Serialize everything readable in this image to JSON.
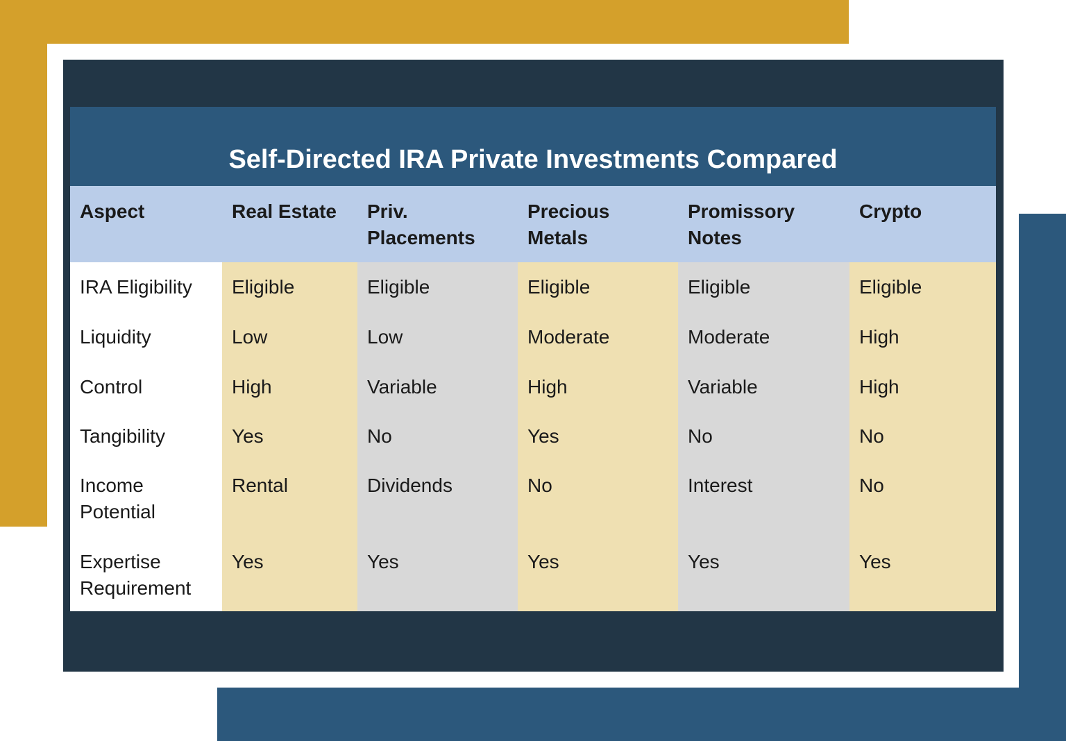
{
  "title": "Self-Directed IRA Private Investments Compared",
  "colors": {
    "gold": "#d4a02b",
    "navy": "#223646",
    "blue": "#2c587c",
    "header_bg": "#bacde9",
    "cream": "#efe0b2",
    "grey": "#d8d8d8"
  },
  "table": {
    "headers": [
      "Aspect",
      "Real Estate",
      "Priv. Placements",
      "Precious Metals",
      "Promissory Notes",
      "Crypto"
    ],
    "rows": [
      {
        "aspect": "IRA Eligibility",
        "values": [
          "Eligible",
          "Eligible",
          "Eligible",
          "Eligible",
          "Eligible"
        ]
      },
      {
        "aspect": "Liquidity",
        "values": [
          "Low",
          "Low",
          "Moderate",
          "Moderate",
          "High"
        ]
      },
      {
        "aspect": "Control",
        "values": [
          "High",
          "Variable",
          "High",
          "Variable",
          "High"
        ]
      },
      {
        "aspect": "Tangibility",
        "values": [
          "Yes",
          "No",
          "Yes",
          "No",
          "No"
        ]
      },
      {
        "aspect": "Income Potential",
        "values": [
          "Rental",
          "Dividends",
          "No",
          "Interest",
          "No"
        ]
      },
      {
        "aspect": "Expertise Requirement",
        "values": [
          "Yes",
          "Yes",
          "Yes",
          "Yes",
          "Yes"
        ]
      }
    ]
  }
}
